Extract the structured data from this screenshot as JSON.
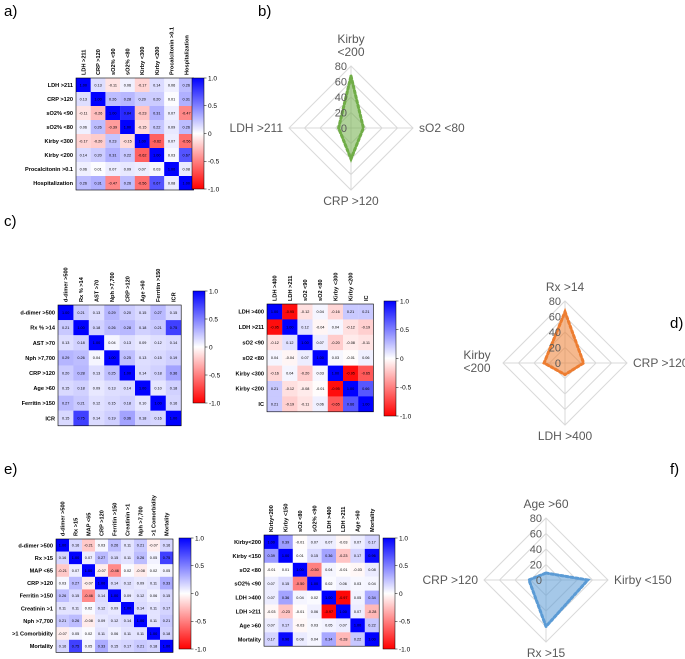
{
  "panel_labels": [
    "a)",
    "b)",
    "c)",
    "d)",
    "e)",
    "f)"
  ],
  "colorbar_ticks": [
    "1.0",
    "0.5",
    "0",
    "-0.5",
    "-1.0"
  ],
  "chart_data": [
    {
      "id": "a-matrix",
      "type": "heatmap",
      "panel": "a)",
      "labels": [
        "LDH >211",
        "CRP >120",
        "sO2% <90",
        "sO2% <80",
        "Kirby <300",
        "Kirby <200",
        "Procalcitonin >0.1",
        "Hospitalization"
      ],
      "values": [
        [
          1.0,
          0.13,
          -0.11,
          0.06,
          -0.17,
          0.14,
          0.06,
          0.26
        ],
        [
          0.13,
          1.0,
          0.26,
          0.28,
          0.2,
          0.2,
          0.01,
          0.31
        ],
        [
          -0.11,
          -0.26,
          1.0,
          0.84,
          -0.23,
          0.31,
          0.07,
          -0.47
        ],
        [
          0.06,
          0.26,
          -0.39,
          1.0,
          -0.15,
          0.22,
          0.09,
          0.26
        ],
        [
          -0.17,
          -0.2,
          0.23,
          -0.15,
          1.0,
          -0.62,
          0.07,
          -0.56
        ],
        [
          0.14,
          0.2,
          0.31,
          0.22,
          -0.62,
          1.0,
          0.03,
          0.67
        ],
        [
          0.06,
          0.01,
          0.07,
          0.09,
          0.07,
          0.03,
          1.0,
          0.08
        ],
        [
          0.26,
          0.31,
          -0.47,
          0.26,
          -0.56,
          0.67,
          0.08,
          1.0
        ]
      ],
      "colorbar_range": [
        -1.0,
        1.0
      ]
    },
    {
      "id": "c-left",
      "type": "heatmap",
      "panel": "c)",
      "labels": [
        "d-dimer >500",
        "Rx % >14",
        "AST >70",
        "Nph >7,700",
        "CRP >120",
        "Age >60",
        "Ferritin >150",
        "ICR"
      ],
      "values": [
        [
          1.0,
          0.21,
          0.13,
          0.29,
          0.2,
          0.15,
          0.27,
          0.15
        ],
        [
          0.21,
          1.0,
          0.18,
          0.26,
          0.28,
          0.18,
          0.21,
          0.75
        ],
        [
          0.13,
          0.18,
          1.0,
          0.04,
          0.13,
          0.09,
          0.12,
          0.14
        ],
        [
          0.29,
          0.26,
          0.04,
          1.0,
          0.25,
          0.13,
          0.15,
          0.19
        ],
        [
          0.2,
          0.28,
          0.13,
          0.25,
          1.0,
          0.14,
          0.18,
          0.36
        ],
        [
          0.15,
          0.18,
          0.09,
          0.13,
          0.14,
          1.0,
          0.1,
          0.18
        ],
        [
          0.27,
          0.21,
          0.12,
          0.15,
          0.18,
          0.1,
          1.0,
          0.16
        ],
        [
          0.15,
          0.75,
          0.14,
          0.19,
          0.36,
          0.18,
          0.16,
          1.0
        ]
      ],
      "colorbar_range": [
        -1.0,
        1.0
      ]
    },
    {
      "id": "c-right",
      "type": "heatmap",
      "panel": "c)",
      "labels": [
        "LDH >400",
        "LDH >211",
        "sO2 <90",
        "sO2 <80",
        "Kirby <300",
        "Kirby <200",
        "IC"
      ],
      "values": [
        [
          1.0,
          -0.95,
          -0.12,
          0.04,
          -0.16,
          0.21,
          0.21
        ],
        [
          -0.95,
          1.0,
          0.12,
          -0.04,
          0.04,
          -0.12,
          -0.19
        ],
        [
          -0.12,
          0.12,
          1.0,
          0.07,
          -0.2,
          -0.08,
          -0.11
        ],
        [
          0.04,
          -0.04,
          0.07,
          1.0,
          0.03,
          -0.01,
          0.06
        ],
        [
          -0.16,
          0.04,
          -0.2,
          0.03,
          1.0,
          -0.95,
          -0.65
        ],
        [
          0.21,
          -0.12,
          -0.08,
          -0.01,
          -0.95,
          1.0,
          0.66
        ],
        [
          0.21,
          -0.19,
          -0.11,
          0.06,
          -0.65,
          0.66,
          1.0
        ]
      ],
      "colorbar_range": [
        -1.0,
        1.0
      ]
    },
    {
      "id": "e-left",
      "type": "heatmap",
      "panel": "e)",
      "labels": [
        "d-dimer >500",
        "Rx >15",
        "MAP <65",
        "CRP >120",
        "Ferritin >150",
        "Creatinin >1",
        "Nph >7,700",
        ">1 Comorbidity",
        "Mortality"
      ],
      "values": [
        [
          1.0,
          0.16,
          -0.21,
          0.03,
          0.26,
          0.11,
          0.21,
          -0.07,
          0.16
        ],
        [
          0.16,
          1.0,
          0.07,
          0.27,
          0.15,
          0.11,
          0.26,
          0.05,
          0.75
        ],
        [
          -0.21,
          0.07,
          1.0,
          -0.07,
          -0.46,
          0.02,
          -0.08,
          0.02,
          0.05
        ],
        [
          0.03,
          0.27,
          -0.07,
          1.0,
          0.14,
          0.12,
          0.09,
          0.11,
          0.33
        ],
        [
          0.26,
          0.15,
          -0.46,
          0.14,
          1.0,
          0.09,
          0.12,
          0.06,
          0.15
        ],
        [
          0.11,
          0.11,
          0.02,
          0.12,
          0.09,
          1.0,
          0.14,
          0.11,
          0.17
        ],
        [
          0.21,
          0.26,
          -0.08,
          0.09,
          0.12,
          0.14,
          1.0,
          0.11,
          0.21
        ],
        [
          -0.07,
          0.05,
          0.02,
          0.11,
          0.06,
          0.11,
          0.11,
          1.0,
          0.18
        ],
        [
          0.16,
          0.75,
          0.05,
          0.33,
          0.15,
          0.17,
          0.21,
          0.18,
          1.0
        ]
      ],
      "colorbar_range": [
        -1.0,
        1.0
      ]
    },
    {
      "id": "e-right",
      "type": "heatmap",
      "panel": "e)",
      "labels": [
        "Kirby<200",
        "Kirby <150",
        "sO2 <80",
        "sO2% <90",
        "LDH >400",
        "LDH >211",
        "Age >60",
        "Mortality"
      ],
      "values": [
        [
          1.0,
          0.39,
          -0.01,
          0.07,
          0.07,
          -0.03,
          0.07,
          0.17
        ],
        [
          0.39,
          1.0,
          0.01,
          0.15,
          0.36,
          -0.23,
          0.17,
          0.96
        ],
        [
          -0.01,
          0.01,
          1.0,
          -0.5,
          0.04,
          -0.01,
          -0.03,
          0.08
        ],
        [
          0.07,
          0.15,
          -0.5,
          1.0,
          0.02,
          0.06,
          0.03,
          0.04
        ],
        [
          0.07,
          0.36,
          0.04,
          0.02,
          1.0,
          -0.97,
          0.05,
          0.34
        ],
        [
          -0.03,
          -0.23,
          -0.01,
          0.06,
          -0.97,
          1.0,
          0.07,
          -0.28
        ],
        [
          0.07,
          0.17,
          -0.03,
          0.03,
          0.05,
          0.07,
          1.0,
          0.22
        ],
        [
          0.17,
          0.96,
          0.08,
          0.04,
          0.34,
          -0.28,
          0.22,
          1.0
        ]
      ],
      "colorbar_range": [
        -1.0,
        1.0
      ]
    },
    {
      "id": "b-radar",
      "type": "radar",
      "panel": "b)",
      "axes": [
        "Kirby <200",
        "sO2 <80",
        "CRP >120",
        "LDH >211"
      ],
      "values": [
        67,
        16,
        40,
        16
      ],
      "rmax": 80,
      "ticks": [
        0,
        20,
        40,
        60,
        80
      ],
      "color": "#70ad47"
    },
    {
      "id": "d-radar",
      "type": "radar",
      "panel": "d)",
      "axes": [
        "Rx >14",
        "CRP >120",
        "LDH >400",
        "Kirby <200"
      ],
      "values": [
        66,
        24,
        15,
        27
      ],
      "rmax": 80,
      "ticks": [
        0,
        20,
        40,
        60,
        80
      ],
      "color": "#ed7d31"
    },
    {
      "id": "f-radar",
      "type": "radar",
      "panel": "f)",
      "axes": [
        "Age >60",
        "Kirby <150",
        "Rx >15",
        "CRP >120"
      ],
      "values": [
        9,
        54,
        60,
        22
      ],
      "rmax": 80,
      "ticks": [
        0,
        20,
        40,
        60,
        80
      ],
      "color": "#5b9bd5"
    }
  ]
}
